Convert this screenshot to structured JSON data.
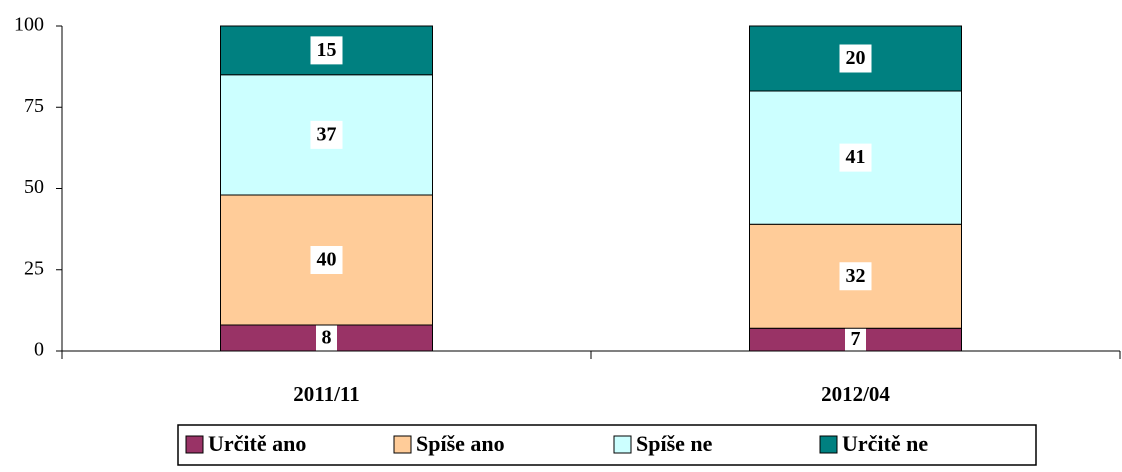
{
  "chart_data": {
    "type": "stacked_bar",
    "categories": [
      "2011/11",
      "2012/04"
    ],
    "series": [
      {
        "name": "Určitě ano",
        "color": "#993366",
        "values": [
          8,
          7
        ]
      },
      {
        "name": "Spíše ano",
        "color": "#ffcc99",
        "values": [
          40,
          32
        ]
      },
      {
        "name": "Spíše ne",
        "color": "#ccffff",
        "values": [
          37,
          41
        ]
      },
      {
        "name": "Určitě ne",
        "color": "#008080",
        "values": [
          15,
          20
        ]
      }
    ],
    "ylim": [
      0,
      100
    ],
    "yticks": [
      0,
      25,
      50,
      75,
      100
    ],
    "legend": "bottom"
  }
}
